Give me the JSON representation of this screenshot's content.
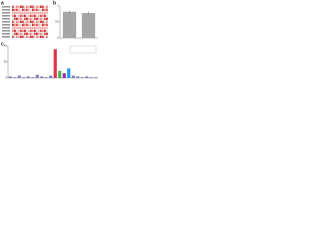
{
  "panel_labels": [
    "a",
    "b",
    "c"
  ],
  "chart_data": [
    {
      "type": "bar",
      "values": [
        0.82,
        0.78
      ],
      "errors": [
        0.04,
        0.05
      ],
      "color": "#a6a6a6",
      "ylim": [
        0,
        1
      ],
      "yticks": [
        0,
        0.5,
        1
      ]
    },
    {
      "type": "bar",
      "values": [
        2,
        1,
        3,
        1,
        2,
        1,
        4,
        2,
        1,
        3,
        36,
        9,
        6,
        12,
        3,
        2,
        1,
        2,
        1,
        1
      ],
      "colors": [
        "#7f7fbf",
        "#7f7fbf",
        "#7f7fbf",
        "#7f7fbf",
        "#7f7fbf",
        "#7f7fbf",
        "#7f7fbf",
        "#7f7fbf",
        "#7f7fbf",
        "#7f7fbf",
        "#e0334a",
        "#4caf50",
        "#9c27b0",
        "#2196f3",
        "#7f7fbf",
        "#7f7fbf",
        "#7f7fbf",
        "#7f7fbf",
        "#7f7fbf",
        "#7f7fbf"
      ],
      "ylim": [
        0,
        40
      ],
      "yticks": [
        0,
        20,
        40
      ]
    }
  ]
}
